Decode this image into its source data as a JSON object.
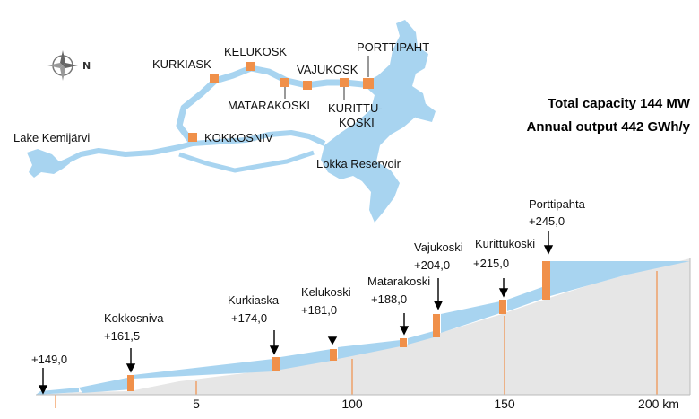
{
  "map": {
    "compass": {
      "north_label": "N"
    },
    "labels": {
      "lake": "Lake Kemijärvi",
      "reservoir": "Lokka Reservoir",
      "kurkiask": "KURKIASK",
      "kelukosk": "KELUKOSK",
      "vajukosk": "VAJUKOSK",
      "porttipaht": "PORTTIPAHT",
      "matarakoski": "MATARAKOSKI",
      "kurittu_1": "KURITTU-",
      "kurittu_2": "KOSKI",
      "kokkosniv": "KOKKOSNIV"
    },
    "colors": {
      "water": "#a8d4f0",
      "plant": "#f0904a"
    }
  },
  "capacity": {
    "line1": "Total capacity 144 MW",
    "line2": "Annual output 442 GWh/y"
  },
  "profile": {
    "stations": [
      {
        "name": "",
        "elevation": "+149,0"
      },
      {
        "name": "Kokkosniva",
        "elevation": "+161,5"
      },
      {
        "name": "Kurkiaska",
        "elevation": "+174,0"
      },
      {
        "name": "Kelukoski",
        "elevation": "+181,0"
      },
      {
        "name": "Matarakoski",
        "elevation": "+188,0"
      },
      {
        "name": "Vajukoski",
        "elevation": "+204,0"
      },
      {
        "name": "Kurittukoski",
        "elevation": "+215,0"
      },
      {
        "name": "Porttipahta",
        "elevation": "+245,0"
      }
    ],
    "axis_ticks": [
      "5",
      "100",
      "150",
      "200 km"
    ],
    "colors": {
      "ground": "#e6e6e6",
      "water": "#a8d4f0",
      "dam": "#f0904a"
    }
  }
}
